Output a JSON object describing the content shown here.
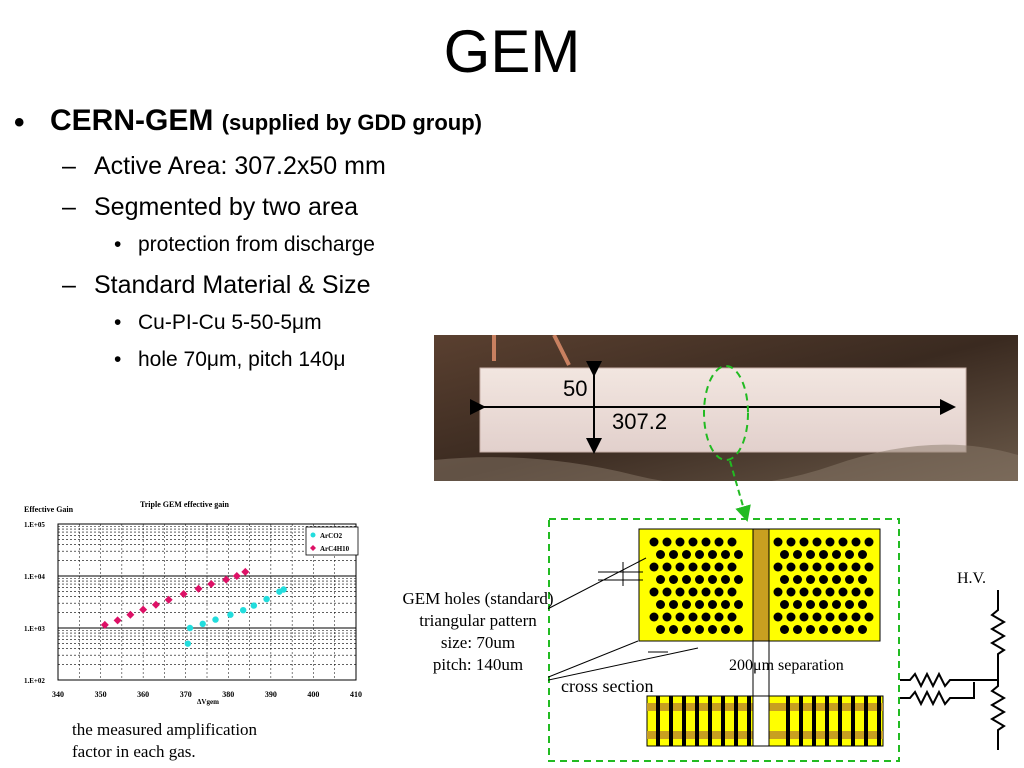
{
  "title": "GEM",
  "bullets": {
    "main": "CERN-GEM",
    "main_note": "(supplied by GDD group)",
    "active_area": "Active Area: 307.2x50 mm",
    "segmented": "Segmented by two area",
    "protection": "protection from discharge",
    "standard": "Standard Material & Size",
    "material": "Cu-PI-Cu 5-50-5μm",
    "hole": "hole 70μm, pitch 140μ"
  },
  "photo": {
    "width_label": "307.2",
    "height_label": "50"
  },
  "diagram": {
    "gem_holes": "GEM holes (standard)",
    "pattern": "triangular pattern",
    "size": "size: 70um",
    "pitch": "pitch: 140um",
    "cross_section": "cross section",
    "separation": "200μm separation",
    "hv": "H.V.",
    "colors": {
      "foil": "#ffff00",
      "strip": "#c8a020",
      "frame": "#22bb22"
    }
  },
  "caption": {
    "line1": "the measured amplification",
    "line2": "factor in each gas."
  },
  "chart_data": {
    "type": "scatter",
    "title": "Triple GEM effective gain",
    "ylabel": "Effective Gain",
    "xlabel": "ΔVgem",
    "xlim": [
      340,
      410
    ],
    "ylim": [
      100,
      100000
    ],
    "yscale": "log",
    "x_ticks": [
      "340",
      "350",
      "360",
      "370",
      "380",
      "390",
      "400",
      "410"
    ],
    "y_ticks": [
      "1.E+02",
      "1.E+03",
      "1.E+04",
      "1.E+05"
    ],
    "grid": true,
    "legend_position": "top-right",
    "series": [
      {
        "name": "ArCO2",
        "color": "#22dddd",
        "marker": "circle",
        "x": [
          370.5,
          371,
          374,
          377,
          380.5,
          383.5,
          386,
          389,
          392,
          393
        ],
        "y": [
          500,
          1000,
          1200,
          1450,
          1800,
          2200,
          2700,
          3600,
          5000,
          5500
        ]
      },
      {
        "name": "ArC4H10",
        "color": "#dd1166",
        "marker": "diamond",
        "x": [
          351,
          354,
          357,
          360,
          363,
          366,
          369.5,
          373,
          376,
          379.5,
          382,
          384
        ],
        "y": [
          1150,
          1400,
          1800,
          2250,
          2800,
          3500,
          4500,
          5700,
          7000,
          8500,
          10000,
          12000
        ]
      }
    ]
  }
}
